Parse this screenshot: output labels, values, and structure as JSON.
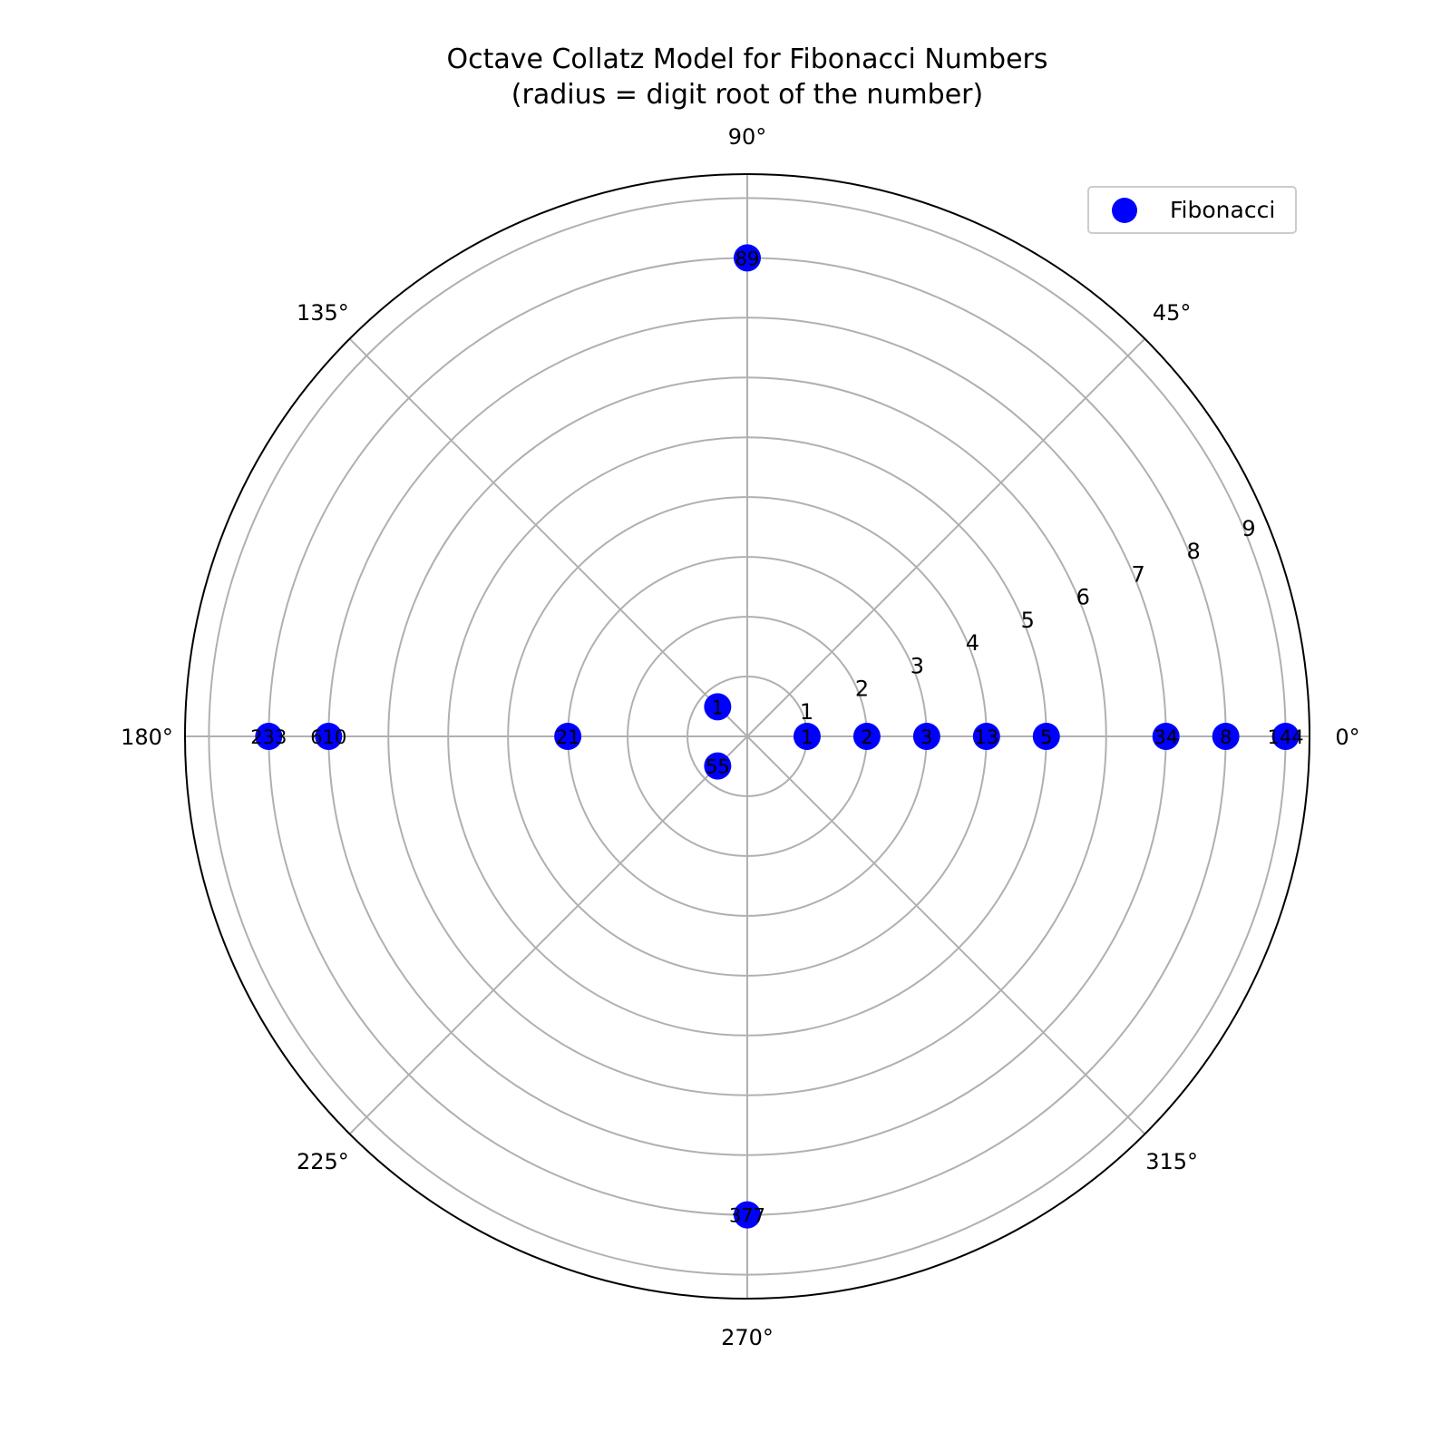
{
  "chart_data": {
    "type": "scatter",
    "projection": "polar",
    "title": "Octave Collatz Model for Fibonacci Numbers",
    "subtitle": "(radius = digit root of the number)",
    "angle_ticks": [
      "0°",
      "45°",
      "90°",
      "135°",
      "180°",
      "225°",
      "270°",
      "315°"
    ],
    "angle_tick_degrees": [
      0,
      45,
      90,
      135,
      180,
      225,
      270,
      315
    ],
    "radial_ticks": [
      1,
      2,
      3,
      4,
      5,
      6,
      7,
      8,
      9
    ],
    "rlim": [
      0,
      9.4
    ],
    "grid": true,
    "legend": {
      "position": "top-right",
      "entries": [
        "Fibonacci"
      ]
    },
    "marker_color": "#0000ff",
    "series": [
      {
        "name": "Fibonacci",
        "points": [
          {
            "label": "1",
            "angle_deg": 0,
            "r": 1
          },
          {
            "label": "1",
            "angle_deg": 135,
            "r": 0.7
          },
          {
            "label": "2",
            "angle_deg": 0,
            "r": 2
          },
          {
            "label": "3",
            "angle_deg": 0,
            "r": 3
          },
          {
            "label": "5",
            "angle_deg": 0,
            "r": 5
          },
          {
            "label": "8",
            "angle_deg": 0,
            "r": 8
          },
          {
            "label": "13",
            "angle_deg": 0,
            "r": 4
          },
          {
            "label": "21",
            "angle_deg": 180,
            "r": 3
          },
          {
            "label": "34",
            "angle_deg": 0,
            "r": 7
          },
          {
            "label": "55",
            "angle_deg": 225,
            "r": 0.7
          },
          {
            "label": "89",
            "angle_deg": 90,
            "r": 8
          },
          {
            "label": "144",
            "angle_deg": 0,
            "r": 9
          },
          {
            "label": "233",
            "angle_deg": 180,
            "r": 8
          },
          {
            "label": "377",
            "angle_deg": 270,
            "r": 8
          },
          {
            "label": "610",
            "angle_deg": 180,
            "r": 7
          }
        ]
      }
    ]
  }
}
